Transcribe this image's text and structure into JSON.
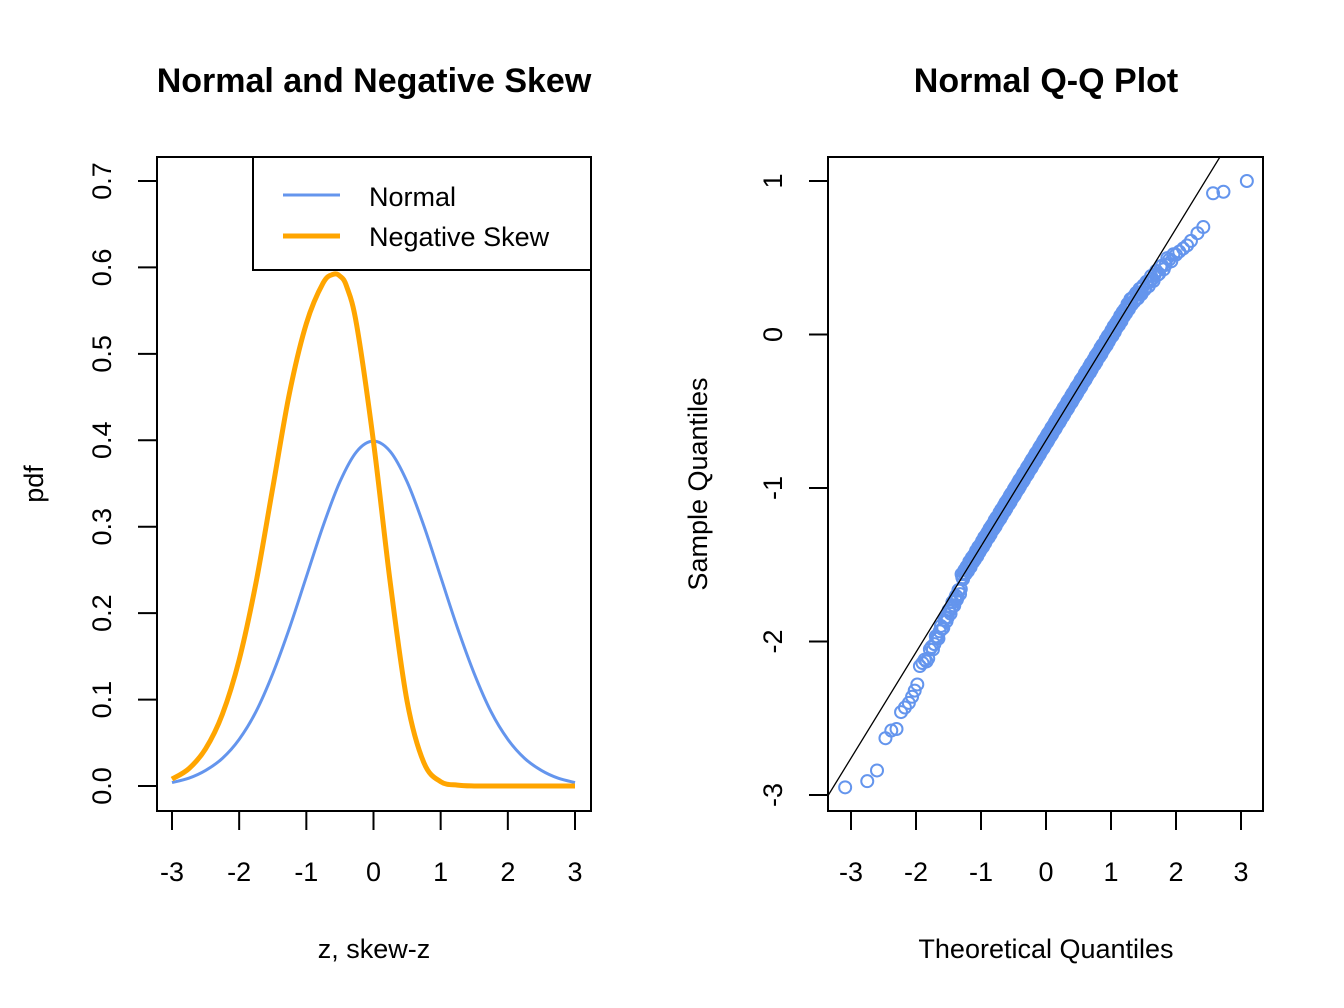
{
  "chart_data": [
    {
      "type": "line",
      "title": "Normal and Negative Skew",
      "xlabel": "z, skew-z",
      "ylabel": "pdf",
      "xlim": [
        -3.2,
        3.4
      ],
      "ylim": [
        -0.03,
        0.73
      ],
      "xticks": [
        -3,
        -2,
        -1,
        0,
        1,
        2,
        3
      ],
      "xtick_labels": [
        "-3",
        "-2",
        "-1",
        "0",
        "1",
        "2",
        "3"
      ],
      "yticks": [
        0.0,
        0.1,
        0.2,
        0.3,
        0.4,
        0.5,
        0.6,
        0.7
      ],
      "ytick_labels": [
        "0.0",
        "0.1",
        "0.2",
        "0.3",
        "0.4",
        "0.5",
        "0.6",
        "0.7"
      ],
      "grid": false,
      "legend": {
        "position": "top-right",
        "entries": [
          "Normal",
          "Negative Skew"
        ]
      },
      "series": [
        {
          "name": "Normal",
          "color": "#6495ED",
          "x": [
            -3.0,
            -2.75,
            -2.5,
            -2.25,
            -2.0,
            -1.75,
            -1.5,
            -1.25,
            -1.0,
            -0.75,
            -0.5,
            -0.25,
            0.0,
            0.25,
            0.5,
            0.75,
            1.0,
            1.25,
            1.5,
            1.75,
            2.0,
            2.25,
            2.5,
            2.75,
            3.0
          ],
          "values": [
            0.004,
            0.009,
            0.018,
            0.032,
            0.054,
            0.086,
            0.13,
            0.183,
            0.242,
            0.301,
            0.352,
            0.387,
            0.399,
            0.387,
            0.352,
            0.301,
            0.242,
            0.183,
            0.13,
            0.086,
            0.054,
            0.032,
            0.018,
            0.009,
            0.004
          ]
        },
        {
          "name": "Negative Skew",
          "color": "#FFA500",
          "x": [
            -3.0,
            -2.75,
            -2.5,
            -2.25,
            -2.0,
            -1.75,
            -1.5,
            -1.25,
            -1.0,
            -0.75,
            -0.6,
            -0.5,
            -0.4,
            -0.25,
            0.0,
            0.25,
            0.5,
            0.75,
            1.0,
            1.25,
            1.5,
            1.75,
            2.0,
            2.5,
            3.0
          ],
          "values": [
            0.008,
            0.02,
            0.043,
            0.083,
            0.146,
            0.235,
            0.345,
            0.455,
            0.535,
            0.582,
            0.592,
            0.59,
            0.578,
            0.533,
            0.398,
            0.235,
            0.098,
            0.027,
            0.005,
            0.001,
            0.0,
            0.0,
            0.0,
            0.0,
            0.0
          ]
        }
      ]
    },
    {
      "type": "scatter",
      "title": "Normal Q-Q Plot",
      "xlabel": "Theoretical Quantiles",
      "ylabel": "Sample Quantiles",
      "xlim": [
        -3.35,
        3.35
      ],
      "ylim": [
        -3.16,
        1.1
      ],
      "xticks": [
        -3,
        -2,
        -1,
        0,
        1,
        2,
        3
      ],
      "xtick_labels": [
        "-3",
        "-2",
        "-1",
        "0",
        "1",
        "2",
        "3"
      ],
      "yticks": [
        -3,
        -2,
        -1,
        0,
        1
      ],
      "ytick_labels": [
        "-3",
        "-2",
        "-1",
        "0",
        "1"
      ],
      "grid": false,
      "point_color": "#6495ED",
      "line_color": "#000000",
      "reference_line": {
        "slope": 0.69,
        "intercept": -0.69
      },
      "sample_size": 500,
      "points_note": "sample quantiles follow the reference line in the center with a heavy left tail and short right tail",
      "tail_points": [
        {
          "x": -3.09,
          "y": -2.95
        },
        {
          "x": -2.75,
          "y": -2.91
        },
        {
          "x": -2.6,
          "y": -2.84
        },
        {
          "x": -2.47,
          "y": -2.63
        },
        {
          "x": -2.38,
          "y": -2.58
        },
        {
          "x": -2.3,
          "y": -2.57
        },
        {
          "x": -2.23,
          "y": -2.46
        },
        {
          "x": -2.17,
          "y": -2.43
        },
        {
          "x": -2.11,
          "y": -2.4
        },
        {
          "x": -2.06,
          "y": -2.36
        },
        {
          "x": -2.02,
          "y": -2.32
        },
        {
          "x": -1.98,
          "y": -2.28
        },
        {
          "x": -1.94,
          "y": -2.16
        },
        {
          "x": -1.9,
          "y": -2.14
        },
        {
          "x": 2.0,
          "y": 0.52
        },
        {
          "x": 2.05,
          "y": 0.54
        },
        {
          "x": 2.11,
          "y": 0.56
        },
        {
          "x": 2.17,
          "y": 0.58
        },
        {
          "x": 2.23,
          "y": 0.61
        },
        {
          "x": 2.33,
          "y": 0.66
        },
        {
          "x": 2.42,
          "y": 0.7
        },
        {
          "x": 2.57,
          "y": 0.92
        },
        {
          "x": 2.73,
          "y": 0.93
        },
        {
          "x": 3.09,
          "y": 1.0
        }
      ]
    }
  ]
}
